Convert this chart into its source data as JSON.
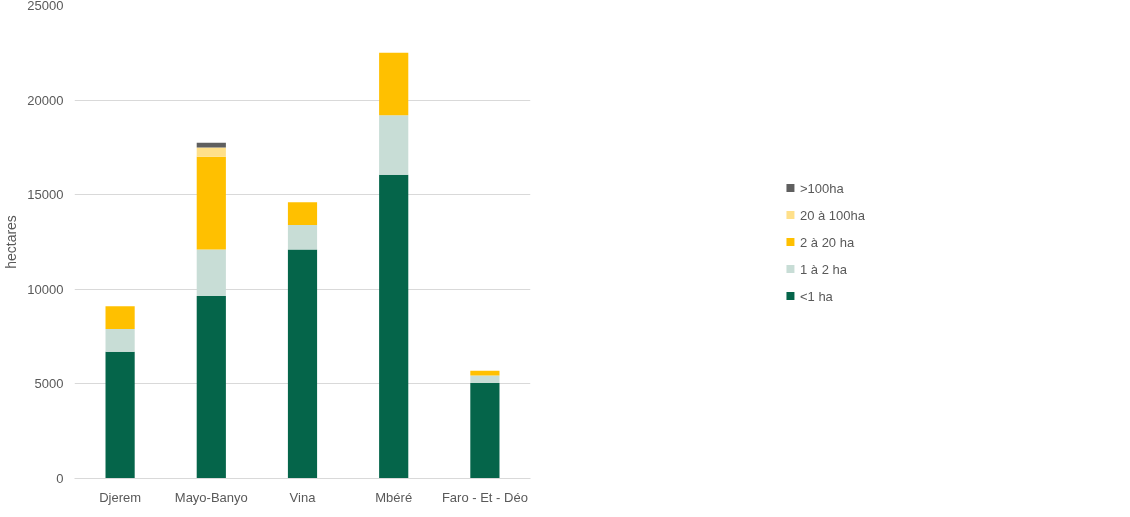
{
  "chart_data": {
    "type": "bar",
    "stacked": true,
    "ylabel": "hectares",
    "categories": [
      "Djerem",
      "Mayo-Banyo",
      "Vina",
      "Mbéré",
      "Faro - Et - Déo"
    ],
    "series": [
      {
        "name": "<1 ha",
        "color": "#05654a",
        "values": [
          6700,
          9650,
          12100,
          16050,
          5050
        ]
      },
      {
        "name": "1 à 2 ha",
        "color": "#c8ddd6",
        "values": [
          1200,
          2450,
          1300,
          3150,
          400
        ]
      },
      {
        "name": "2 à 20 ha",
        "color": "#ffc000",
        "values": [
          1200,
          4900,
          1200,
          3300,
          250
        ]
      },
      {
        "name": "20 à 100ha",
        "color": "#ffe08a",
        "values": [
          0,
          500,
          0,
          0,
          0
        ]
      },
      {
        "name": ">100ha",
        "color": "#5f5f5f",
        "values": [
          0,
          250,
          0,
          0,
          0
        ]
      }
    ],
    "ylim": [
      0,
      25000
    ],
    "yticks": [
      0,
      5000,
      10000,
      15000,
      20000,
      25000
    ],
    "grid": "y",
    "legend": "right"
  }
}
